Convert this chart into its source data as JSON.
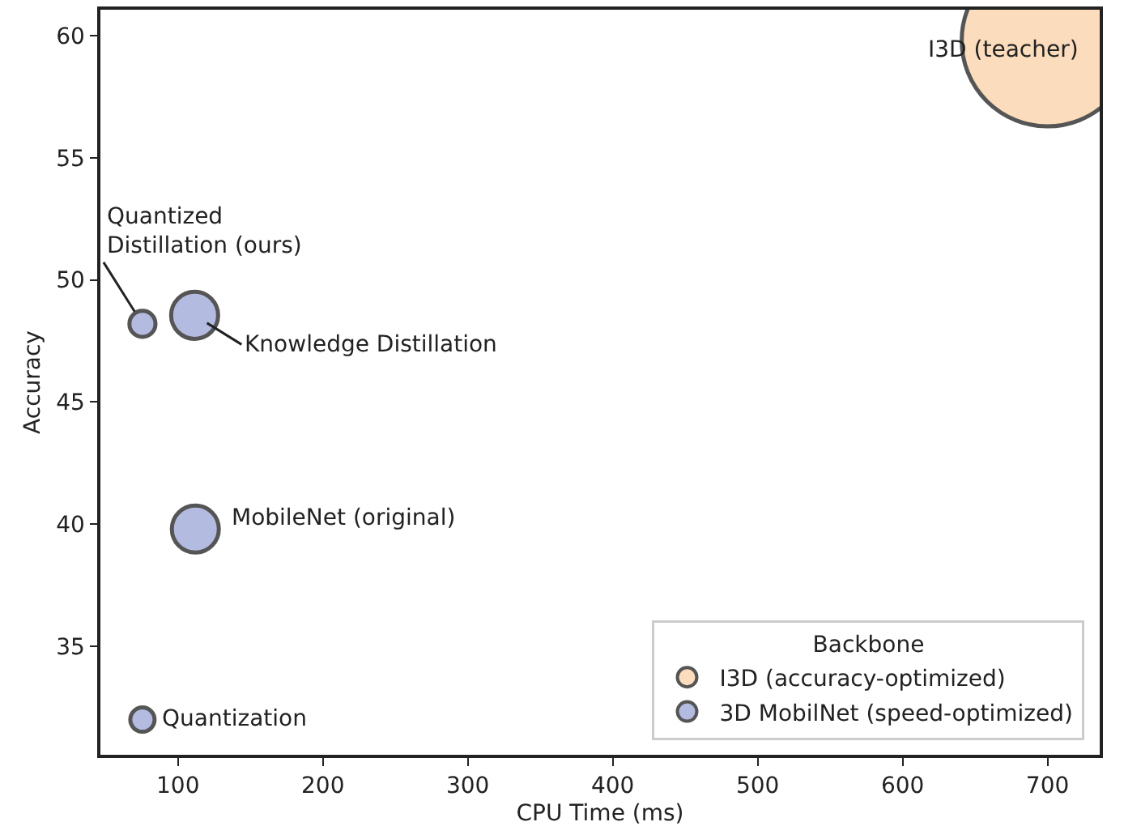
{
  "chart_data": {
    "type": "bubble",
    "xlabel": "CPU Time (ms)",
    "ylabel": "Accuracy",
    "legend_title": "Backbone",
    "xlim": [
      46.5,
      736
    ],
    "xticks": [
      100,
      200,
      300,
      400,
      500,
      600,
      700
    ],
    "ylim": [
      30.56,
      61.06
    ],
    "yticks": [
      35,
      40,
      45,
      50,
      55,
      60
    ],
    "series": [
      {
        "name": "I3D (accuracy-optimized)",
        "color": "#fbdcbc",
        "x": [
          700
        ],
        "values": [
          59.8
        ],
        "sizes": [
          1
        ]
      },
      {
        "name": "3D MobilNet (speed-optimized)",
        "color": "#b3bbe0",
        "x": [
          75.5,
          111.5,
          112,
          75.5
        ],
        "values": [
          48.2,
          48.55,
          39.8,
          32.0
        ],
        "sizes": [
          0.023,
          0.075,
          0.075,
          0.02
        ]
      }
    ],
    "annotations": [
      {
        "text": "I3D (teacher)",
        "x": 700,
        "y": 59.8
      },
      {
        "text": "Quantized\nDistillation (ours)",
        "x": 75.5,
        "y": 48.2
      },
      {
        "text": "Knowledge Distillation",
        "x": 111.5,
        "y": 48.55
      },
      {
        "text": "MobileNet (original)",
        "x": 112,
        "y": 39.8
      },
      {
        "text": "Quantization",
        "x": 75.5,
        "y": 32.0
      }
    ],
    "grid": false,
    "legend": "bottom right"
  }
}
